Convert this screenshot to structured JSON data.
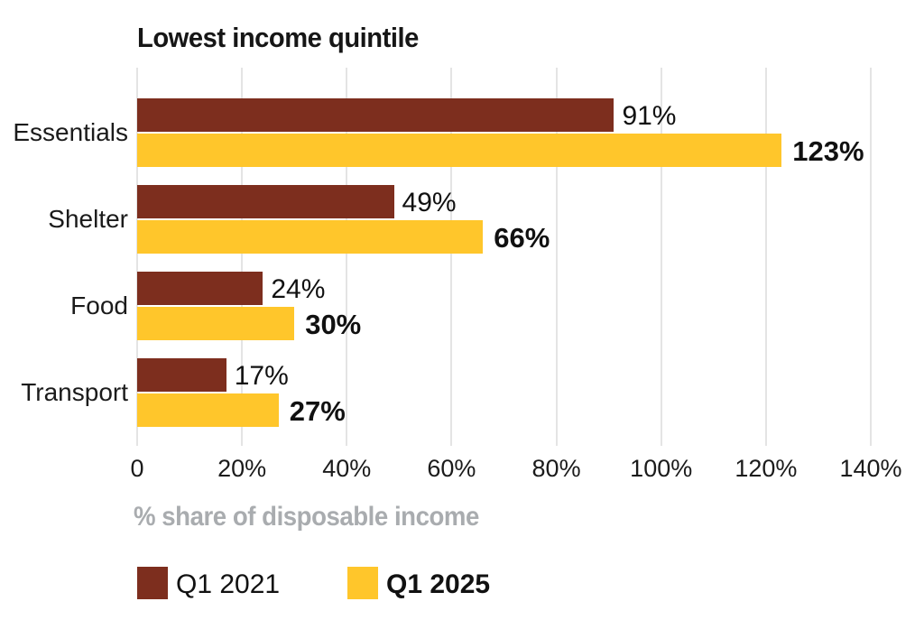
{
  "chart_data": {
    "type": "bar",
    "orientation": "horizontal",
    "title": "Lowest income quintile",
    "xlabel": "% share of disposable income",
    "categories": [
      "Essentials",
      "Shelter",
      "Food",
      "Transport"
    ],
    "series": [
      {
        "name": "Q1 2021",
        "color": "#7D2E1E",
        "values": [
          91,
          49,
          24,
          17
        ],
        "value_labels": [
          "91%",
          "49%",
          "24%",
          "17%"
        ],
        "label_bold": false
      },
      {
        "name": "Q1 2025",
        "color": "#FFC62B",
        "values": [
          123,
          66,
          30,
          27
        ],
        "value_labels": [
          "123%",
          "66%",
          "30%",
          "27%"
        ],
        "label_bold": true
      }
    ],
    "xlim": [
      0,
      140
    ],
    "x_ticks": [
      {
        "value": 0,
        "label": "0"
      },
      {
        "value": 20,
        "label": "20%"
      },
      {
        "value": 40,
        "label": "40%"
      },
      {
        "value": 60,
        "label": "60%"
      },
      {
        "value": 80,
        "label": "80%"
      },
      {
        "value": 100,
        "label": "100%"
      },
      {
        "value": 120,
        "label": "120%"
      },
      {
        "value": 140,
        "label": "140%"
      }
    ],
    "grid": true,
    "legend_position": "bottom-left"
  },
  "colors": {
    "series_q1_2021": "#7D2E1E",
    "series_q1_2025": "#FFC62B",
    "gridline": "#E4E4E4",
    "title_text": "#161616",
    "body_text": "#1B1B1B",
    "value_text": "#111111",
    "axis_caption_gray": "#A9ACAF",
    "background": "#FFFFFF"
  }
}
